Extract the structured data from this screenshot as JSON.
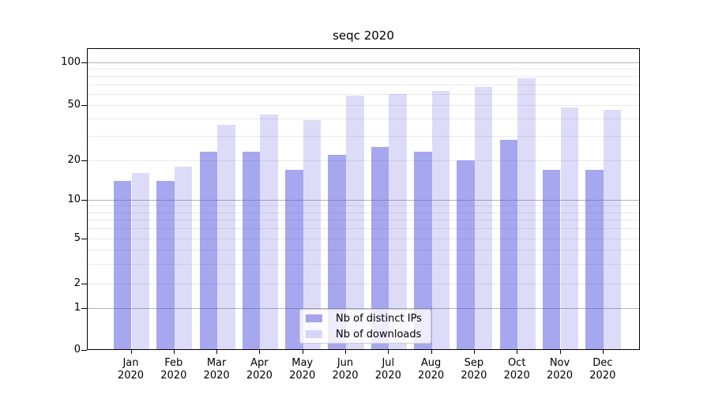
{
  "chart_data": {
    "type": "bar",
    "title": "seqc 2020",
    "categories": [
      "Jan",
      "Feb",
      "Mar",
      "Apr",
      "May",
      "Jun",
      "Jul",
      "Aug",
      "Sep",
      "Oct",
      "Nov",
      "Dec"
    ],
    "x_sub_label": "2020",
    "series": [
      {
        "name": "Nb of distinct IPs",
        "values": [
          14,
          14,
          23,
          23,
          17,
          22,
          25,
          23,
          20,
          28,
          17,
          17
        ],
        "base_color": "#5050e0",
        "fill": "rgba(80,80,224,0.5)",
        "rendered_color": "#a8a8f0"
      },
      {
        "name": "Nb of downloads",
        "values": [
          16,
          18,
          36,
          43,
          39,
          58,
          60,
          63,
          67,
          77,
          48,
          46
        ],
        "base_color": "#5050e0",
        "fill": "rgba(80,80,224,0.2)",
        "rendered_color": "#dcdcf9"
      }
    ],
    "y_axis": {
      "scale": "symlog",
      "tick_values": [
        0,
        1,
        2,
        5,
        10,
        20,
        50,
        100
      ],
      "tick_labels": [
        "0",
        "1",
        "2",
        "5",
        "10",
        "20",
        "50",
        "100"
      ],
      "major_grid_values": [
        1,
        10,
        100
      ],
      "minor_grid_values": [
        2,
        3,
        4,
        5,
        6,
        7,
        8,
        9,
        20,
        30,
        40,
        50,
        60,
        70,
        80,
        90
      ],
      "ylim": [
        0,
        110
      ]
    },
    "grid": {
      "enabled": true,
      "major_color": "#b2b2b2",
      "minor_color": "#e9e9e9"
    },
    "legend": {
      "position": "lower center (inside plot)",
      "items": [
        "Nb of distinct IPs",
        "Nb of downloads"
      ]
    }
  },
  "colors": {
    "background": "#ffffff",
    "axis_spine": "#000000",
    "text": "#000000",
    "legend_border": "#cccccc"
  }
}
